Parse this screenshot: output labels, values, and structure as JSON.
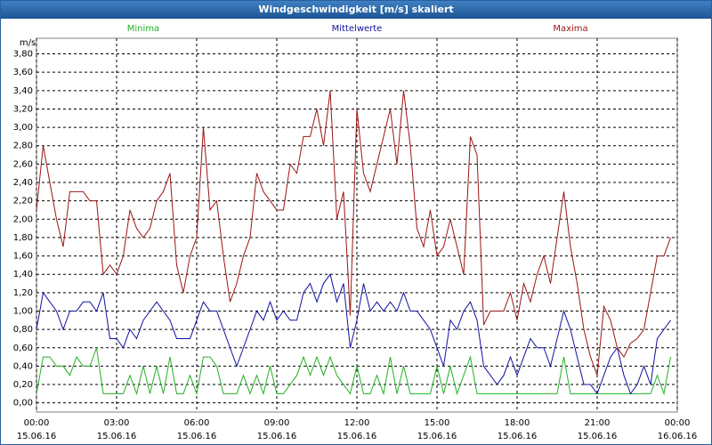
{
  "window_title": "Windgeschwindigkeit [m/s] skaliert",
  "chart_data": {
    "type": "line",
    "y_label": "m/s",
    "x": [
      0,
      0.25,
      0.5,
      0.75,
      1,
      1.25,
      1.5,
      1.75,
      2,
      2.25,
      2.5,
      2.75,
      3,
      3.25,
      3.5,
      3.75,
      4,
      4.25,
      4.5,
      4.75,
      5,
      5.25,
      5.5,
      5.75,
      6,
      6.25,
      6.5,
      6.75,
      7,
      7.25,
      7.5,
      7.75,
      8,
      8.25,
      8.5,
      8.75,
      9,
      9.25,
      9.5,
      9.75,
      10,
      10.25,
      10.5,
      10.75,
      11,
      11.25,
      11.5,
      11.75,
      12,
      12.25,
      12.5,
      12.75,
      13,
      13.25,
      13.5,
      13.75,
      14,
      14.25,
      14.5,
      14.75,
      15,
      15.25,
      15.5,
      15.75,
      16,
      16.25,
      16.5,
      16.75,
      17,
      17.25,
      17.5,
      17.75,
      18,
      18.25,
      18.5,
      18.75,
      19,
      19.25,
      19.5,
      19.75,
      20,
      20.25,
      20.5,
      20.75,
      21,
      21.25,
      21.5,
      21.75,
      22,
      22.25,
      22.5,
      22.75,
      23,
      23.25,
      23.5,
      23.75
    ],
    "series": [
      {
        "name": "Minima",
        "color": "#22b022",
        "values": [
          0.1,
          0.5,
          0.5,
          0.4,
          0.4,
          0.3,
          0.5,
          0.4,
          0.4,
          0.6,
          0.1,
          0.1,
          0.1,
          0.1,
          0.3,
          0.1,
          0.4,
          0.1,
          0.4,
          0.1,
          0.5,
          0.1,
          0.1,
          0.3,
          0.1,
          0.5,
          0.5,
          0.4,
          0.1,
          0.1,
          0.1,
          0.3,
          0.1,
          0.3,
          0.1,
          0.4,
          0.1,
          0.1,
          0.2,
          0.3,
          0.5,
          0.3,
          0.5,
          0.3,
          0.5,
          0.3,
          0.2,
          0.1,
          0.4,
          0.1,
          0.1,
          0.3,
          0.1,
          0.5,
          0.1,
          0.4,
          0.1,
          0.1,
          0.1,
          0.1,
          0.4,
          0.1,
          0.4,
          0.1,
          0.3,
          0.5,
          0.1,
          0.1,
          0.1,
          0.1,
          0.1,
          0.1,
          0.1,
          0.1,
          0.1,
          0.1,
          0.1,
          0.1,
          0.1,
          0.5,
          0.1,
          0.1,
          0.1,
          0.1,
          0.1,
          0.1,
          0.1,
          0.1,
          0.1,
          0.1,
          0.1,
          0.1,
          0.1,
          0.3,
          0.1,
          0.5
        ]
      },
      {
        "name": "Mittelwerte",
        "color": "#1010a0",
        "values": [
          0.8,
          1.2,
          1.1,
          1.0,
          0.8,
          1.0,
          1.0,
          1.1,
          1.1,
          1.0,
          1.2,
          0.7,
          0.7,
          0.6,
          0.8,
          0.7,
          0.9,
          1.0,
          1.1,
          1.0,
          0.9,
          0.7,
          0.7,
          0.7,
          0.9,
          1.1,
          1.0,
          1.0,
          0.8,
          0.6,
          0.4,
          0.6,
          0.8,
          1.0,
          0.9,
          1.1,
          0.9,
          1.0,
          0.9,
          0.9,
          1.2,
          1.3,
          1.1,
          1.3,
          1.4,
          1.1,
          1.3,
          0.6,
          0.9,
          1.3,
          1.0,
          1.1,
          1.0,
          1.1,
          1.0,
          1.2,
          1.0,
          1.0,
          0.9,
          0.8,
          0.6,
          0.4,
          0.9,
          0.8,
          1.0,
          1.1,
          0.9,
          0.4,
          0.3,
          0.2,
          0.3,
          0.5,
          0.3,
          0.5,
          0.7,
          0.6,
          0.6,
          0.4,
          0.7,
          1.0,
          0.8,
          0.5,
          0.2,
          0.2,
          0.1,
          0.3,
          0.5,
          0.6,
          0.3,
          0.1,
          0.2,
          0.4,
          0.2,
          0.7,
          0.8,
          0.9
        ]
      },
      {
        "name": "Maxima",
        "color": "#9c1414",
        "values": [
          2.1,
          2.8,
          2.4,
          2.0,
          1.7,
          2.3,
          2.3,
          2.3,
          2.2,
          2.2,
          1.4,
          1.5,
          1.4,
          1.6,
          2.1,
          1.9,
          1.8,
          1.9,
          2.2,
          2.3,
          2.5,
          1.5,
          1.2,
          1.6,
          1.8,
          3.0,
          2.1,
          2.2,
          1.6,
          1.1,
          1.3,
          1.6,
          1.8,
          2.5,
          2.3,
          2.2,
          2.1,
          2.1,
          2.6,
          2.5,
          2.9,
          2.9,
          3.2,
          2.8,
          3.4,
          2.0,
          2.3,
          0.95,
          3.2,
          2.5,
          2.3,
          2.6,
          2.9,
          3.2,
          2.6,
          3.4,
          2.8,
          1.9,
          1.7,
          2.1,
          1.6,
          1.7,
          2.0,
          1.7,
          1.4,
          2.9,
          2.7,
          0.85,
          1.0,
          1.0,
          1.0,
          1.2,
          0.9,
          1.3,
          1.1,
          1.4,
          1.6,
          1.3,
          1.8,
          2.3,
          1.7,
          1.3,
          0.8,
          0.5,
          0.3,
          1.05,
          0.9,
          0.6,
          0.5,
          0.65,
          0.7,
          0.8,
          1.2,
          1.6,
          1.6,
          1.8
        ]
      }
    ],
    "xlim": [
      0,
      24
    ],
    "ylim": [
      -0.1,
      3.97
    ],
    "xticks": [
      {
        "value": 0,
        "label": "00:00",
        "date": "15.06.16"
      },
      {
        "value": 3,
        "label": "03:00",
        "date": "15.06.16"
      },
      {
        "value": 6,
        "label": "06:00",
        "date": "15.06.16"
      },
      {
        "value": 9,
        "label": "09:00",
        "date": "15.06.16"
      },
      {
        "value": 12,
        "label": "12:00",
        "date": "15.06.16"
      },
      {
        "value": 15,
        "label": "15:00",
        "date": "15.06.16"
      },
      {
        "value": 18,
        "label": "18:00",
        "date": "15.06.16"
      },
      {
        "value": 21,
        "label": "21:00",
        "date": "15.06.16"
      },
      {
        "value": 24,
        "label": "00:00",
        "date": "16.06.16"
      }
    ],
    "yticks": [
      {
        "value": 0,
        "label": "0,00"
      },
      {
        "value": 0.2,
        "label": "0,20"
      },
      {
        "value": 0.4,
        "label": "0,40"
      },
      {
        "value": 0.6,
        "label": "0,60"
      },
      {
        "value": 0.8,
        "label": "0,80"
      },
      {
        "value": 1.0,
        "label": "1,00"
      },
      {
        "value": 1.2,
        "label": "1,20"
      },
      {
        "value": 1.4,
        "label": "1,40"
      },
      {
        "value": 1.6,
        "label": "1,60"
      },
      {
        "value": 1.8,
        "label": "1,80"
      },
      {
        "value": 2.0,
        "label": "2,00"
      },
      {
        "value": 2.2,
        "label": "2,20"
      },
      {
        "value": 2.4,
        "label": "2,40"
      },
      {
        "value": 2.6,
        "label": "2,60"
      },
      {
        "value": 2.8,
        "label": "2,80"
      },
      {
        "value": 3.0,
        "label": "3,00"
      },
      {
        "value": 3.2,
        "label": "3,20"
      },
      {
        "value": 3.4,
        "label": "3,40"
      },
      {
        "value": 3.6,
        "label": "3,60"
      },
      {
        "value": 3.8,
        "label": "3,80"
      }
    ],
    "grid": true,
    "legend": "top"
  }
}
